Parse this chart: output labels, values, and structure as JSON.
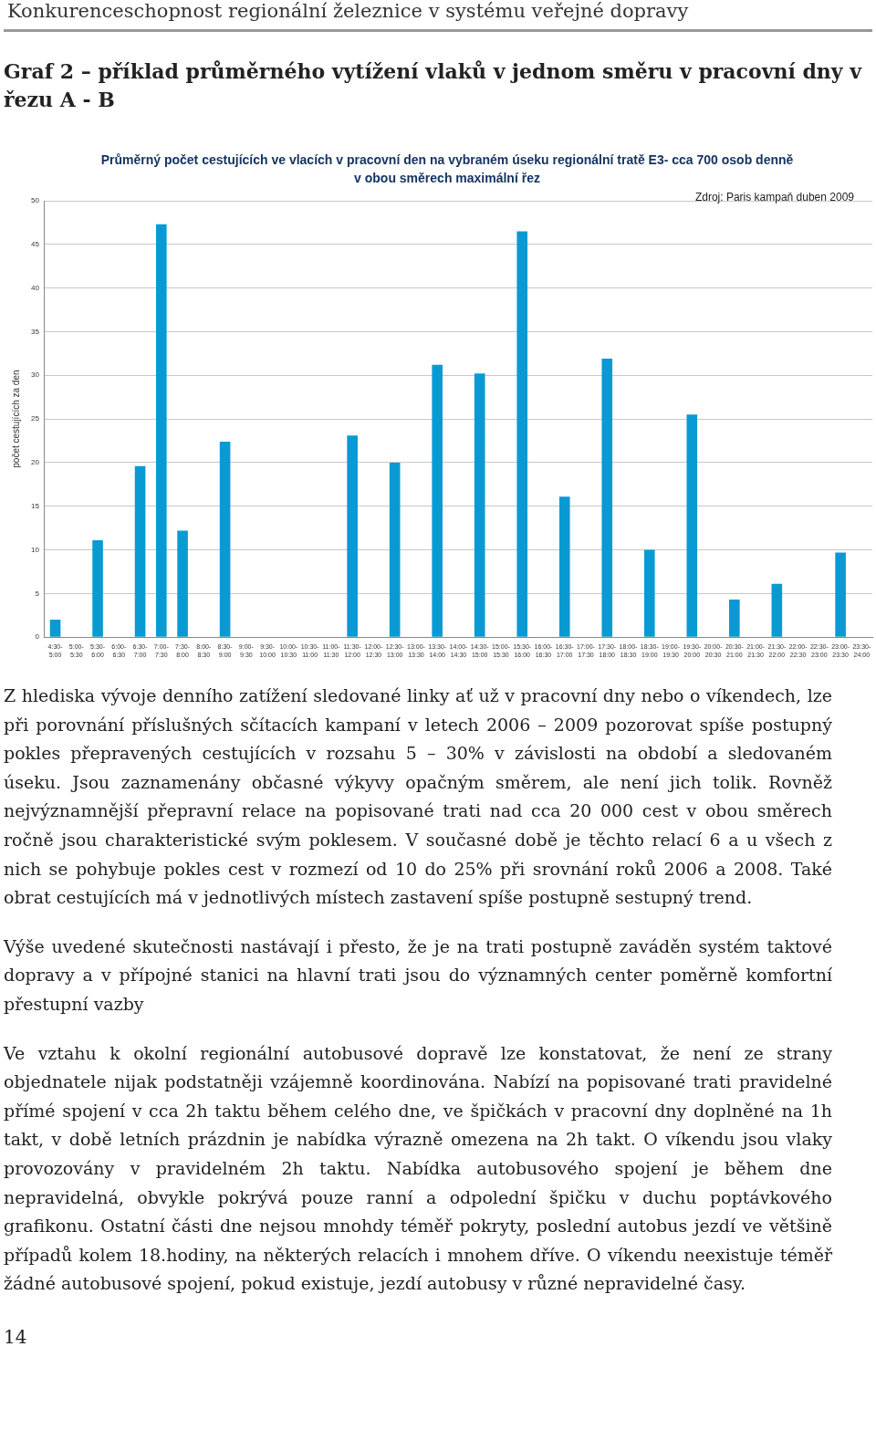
{
  "chart_data": {
    "type": "bar",
    "title": "Graf 2 – příklad průměrného vytížení vlaků v jednom směru v pracovní dny v řezu A - B",
    "subtitle": "Průměrný počet cestujících ve vlacích v pracovní den na vybraném úseku regionální tratě E3- cca 700 osob denně v obou směrech maximální řez",
    "ylabel": "počet cestujících za den",
    "categories": [
      "4:30-5:00",
      "5:00-5:30",
      "5:30-6:00",
      "6:00-6:30",
      "6:30-7:00",
      "7:00-7:30",
      "7:30-8:00",
      "8:00-8:30",
      "8:30-9:00",
      "9:00-9:30",
      "9:30-10:00",
      "10:00-10:30",
      "10:30-11:00",
      "11:00-11:30",
      "11:30-12:00",
      "12:00-12:30",
      "12:30-13:00",
      "13:00-13:30",
      "13:30-14:00",
      "14:00-14:30",
      "14:30-15:00",
      "15:00-15:30",
      "15:30-16:00",
      "16:00-16:30",
      "16:30-17:00",
      "17:00-17:30",
      "17:30-18:00",
      "18:00-18:30",
      "18:30-19:00",
      "19:00-19:30",
      "19:30-20:00",
      "20:00-20:30",
      "20:30-21:00",
      "21:00-21:30",
      "21:30-22:00",
      "22:00-22:30",
      "22:30-23:00",
      "23:00-23:30",
      "23:30-24:00"
    ],
    "values": [
      2,
      0,
      11.1,
      0,
      19.6,
      47.3,
      12.2,
      0,
      22.4,
      0,
      0,
      0,
      0,
      0,
      23.1,
      0,
      20,
      0,
      31.2,
      0,
      30.2,
      0,
      46.5,
      0,
      16.1,
      0,
      31.9,
      0,
      10,
      0,
      25.5,
      0,
      4.3,
      0,
      6.1,
      0,
      0,
      9.7,
      0
    ],
    "color": "#0a9ad3",
    "ylim": [
      0,
      50
    ],
    "yticks": [
      0,
      5,
      10,
      15,
      20,
      25,
      30,
      35,
      40,
      45,
      50
    ],
    "grid": "y",
    "legend": false,
    "annotations": [
      "Konkurenceschopnost regionální železnice v systému veřejné dopravy",
      "Zdroj: Paris kampaň duben 2009",
      "Z hlediska vývoje denního zatížení sledované linky ať už v pracovní dny nebo o víkendech, lze při porovnání příslušných sčítacích kampaní v letech 2006 – 2009 pozorovat spíše postupný pokles přepravených cestujících v rozsahu 5 – 30% v závislosti na období a sledovaném úseku. Jsou zaznamenány občasné výkyvy opačným směrem, ale není jich tolik. Rovněž nejvýznamnější přepravní relace na popisované trati nad cca 20 000 cest v obou směrech ročně jsou charakteristické svým poklesem. V současné době je těchto relací 6 a u všech z nich se pohybuje pokles cest v rozmezí od 10 do 25% při srovnání roků 2006 a 2008. Také obrat cestujících má v jednotlivých místech zastavení spíše postupně sestupný trend.",
      "Výše uvedené skutečnosti nastávají i přesto, že je na trati postupně zaváděn systém taktové dopravy a v přípojné stanici na hlavní trati jsou do významných center poměrně komfortní přestupní vazby",
      "Ve vztahu k okolní regionální autobusové dopravě lze konstatovat, že není ze strany objednatele nijak podstatněji vzájemně koordinována. Nabízí na popisované trati pravidelné přímé spojení v cca 2h taktu během celého dne, ve špičkách v pracovní dny doplněné na 1h takt, v době letních prázdnin je nabídka výrazně omezena na 2h takt. O víkendu jsou vlaky provozovány v pravidelném 2h taktu. Nabídka autobusového spojení je během dne nepravidelná, obvykle pokrývá pouze ranní a odpolední špičku v duchu poptávkového grafikonu. Ostatní části dne nejsou mnohdy téměř pokryty, poslední autobus jezdí ve většině případů kolem 18.hodiny, na některých relacích i mnohem dříve. O víkendu neexistuje téměř žádné autobusové spojení, pokud existuje, jezdí autobusy v různé nepravidelné časy.",
      "14"
    ]
  }
}
